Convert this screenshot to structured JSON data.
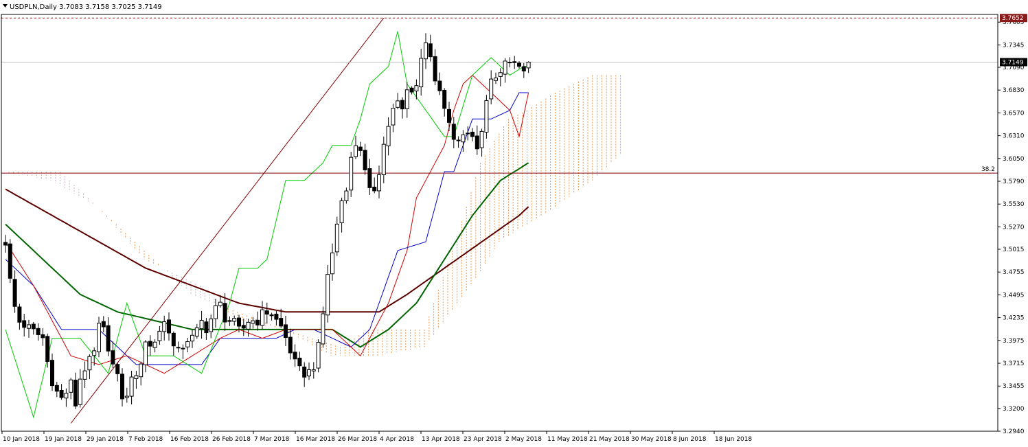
{
  "chart_data": {
    "type": "candlestick",
    "symbol": "USDPLN",
    "timeframe": "Daily",
    "header_text": "USDPLN,Daily  3.7083 3.7158 3.7025 3.7149",
    "ohlc_last": {
      "open": 3.7083,
      "high": 3.7158,
      "low": 3.7025,
      "close": 3.7149
    },
    "y_ticks": [
      "3.7605",
      "3.7345",
      "3.7090",
      "3.6830",
      "3.6570",
      "3.6310",
      "3.6050",
      "3.5790",
      "3.5530",
      "3.5270",
      "3.5015",
      "3.4755",
      "3.4495",
      "3.4235",
      "3.3975",
      "3.3715",
      "3.3455",
      "3.3200",
      "3.2940"
    ],
    "ylim": [
      3.294,
      3.7685
    ],
    "x_ticks": [
      "10 Jan 2018",
      "19 Jan 2018",
      "29 Jan 2018",
      "7 Feb 2018",
      "16 Feb 2018",
      "26 Feb 2018",
      "7 Mar 2018",
      "16 Mar 2018",
      "26 Mar 2018",
      "4 Apr 2018",
      "13 Apr 2018",
      "23 Apr 2018",
      "2 May 2018",
      "11 May 2018",
      "21 May 2018",
      "30 May 2018",
      "8 Jun 2018",
      "18 Jun 2018"
    ],
    "price_labels": [
      {
        "text": "3.7652",
        "value": 3.7652,
        "color": "#8b1a1a"
      },
      {
        "text": "3.7149",
        "value": 3.7149,
        "color": "#000000"
      }
    ],
    "fib_label": "38.2",
    "fib_level": 3.5883,
    "trendline": {
      "from": {
        "x": "19 Jan 2018",
        "y": 3.303
      },
      "to": {
        "x": "28 May 2018",
        "y": 3.7652
      }
    },
    "colors": {
      "bull": "#ffffff",
      "bear": "#000000",
      "wick": "#000000",
      "tenkan": "#d00000",
      "kijun": "#0000cc",
      "chikou": "#00cc00",
      "ma_mid": "#006400",
      "ma_long": "#5c0000",
      "kumo_bear": "#b9a0b9",
      "kumo_bull": "#e07a20",
      "fib": "#800000",
      "grid": "#a0a0a0"
    },
    "candles": [],
    "series": {}
  }
}
